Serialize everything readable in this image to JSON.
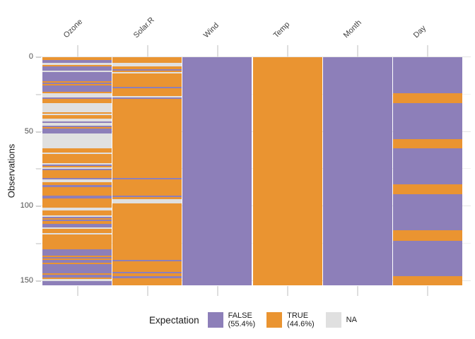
{
  "chart_data": {
    "type": "heatmap",
    "title": "",
    "ylabel": "Observations",
    "x_categories": [
      "Ozone",
      "Solar.R",
      "Wind",
      "Temp",
      "Month",
      "Day"
    ],
    "y_axis_ticks": [
      0,
      50,
      100,
      150
    ],
    "y_axis_minor_ticks": [
      25,
      75,
      125
    ],
    "y_range": [
      0,
      153
    ],
    "n_observations": 153,
    "grid": "minimal",
    "colors": {
      "T": "#ea9431",
      "F": "#8d7fb9",
      "N": "#e0e0e0"
    },
    "value_names": {
      "T": "TRUE",
      "F": "FALSE",
      "N": "NA"
    },
    "legend": {
      "position": "bottom",
      "title": "Expectation",
      "entries": [
        {
          "code": "F",
          "label": "FALSE",
          "percent": "(55.4%)",
          "color": "#8d7fb9"
        },
        {
          "code": "T",
          "label": "TRUE",
          "percent": "(44.6%)",
          "color": "#ea9431"
        },
        {
          "code": "N",
          "label": "NA",
          "percent": "",
          "color": "#e0e0e0"
        }
      ]
    },
    "cells_rle": {
      "Ozone": [
        [
          "T",
          2
        ],
        [
          "F",
          2
        ],
        [
          "N",
          1
        ],
        [
          "T",
          1
        ],
        [
          "F",
          3
        ],
        [
          "N",
          1
        ],
        [
          "F",
          6
        ],
        [
          "T",
          1
        ],
        [
          "F",
          1
        ],
        [
          "T",
          1
        ],
        [
          "F",
          4
        ],
        [
          "T",
          1
        ],
        [
          "N",
          3
        ],
        [
          "F",
          1
        ],
        [
          "T",
          3
        ],
        [
          "N",
          6
        ],
        [
          "T",
          1
        ],
        [
          "N",
          1
        ],
        [
          "T",
          2
        ],
        [
          "N",
          2
        ],
        [
          "F",
          1
        ],
        [
          "N",
          2
        ],
        [
          "F",
          1
        ],
        [
          "T",
          1
        ],
        [
          "F",
          3
        ],
        [
          "N",
          10
        ],
        [
          "T",
          3
        ],
        [
          "N",
          1
        ],
        [
          "T",
          6
        ],
        [
          "N",
          1
        ],
        [
          "F",
          1
        ],
        [
          "T",
          1
        ],
        [
          "N",
          1
        ],
        [
          "F",
          1
        ],
        [
          "T",
          5
        ],
        [
          "F",
          1
        ],
        [
          "N",
          2
        ],
        [
          "T",
          2
        ],
        [
          "F",
          1
        ],
        [
          "T",
          6
        ],
        [
          "F",
          2
        ],
        [
          "T",
          6
        ],
        [
          "N",
          2
        ],
        [
          "T",
          3
        ],
        [
          "N",
          1
        ],
        [
          "F",
          1
        ],
        [
          "T",
          1
        ],
        [
          "F",
          1
        ],
        [
          "T",
          2
        ],
        [
          "F",
          2
        ],
        [
          "N",
          1
        ],
        [
          "T",
          3
        ],
        [
          "N",
          1
        ],
        [
          "T",
          10
        ],
        [
          "F",
          4
        ],
        [
          "T",
          1
        ],
        [
          "F",
          1
        ],
        [
          "T",
          1
        ],
        [
          "F",
          2
        ],
        [
          "T",
          1
        ],
        [
          "F",
          6
        ],
        [
          "T",
          1
        ],
        [
          "F",
          2
        ],
        [
          "T",
          1
        ],
        [
          "N",
          1
        ],
        [
          "F",
          3
        ]
      ],
      "Solar.R": [
        [
          "T",
          4
        ],
        [
          "N",
          2
        ],
        [
          "T",
          2
        ],
        [
          "F",
          1
        ],
        [
          "T",
          1
        ],
        [
          "N",
          1
        ],
        [
          "T",
          9
        ],
        [
          "F",
          1
        ],
        [
          "T",
          5
        ],
        [
          "N",
          1
        ],
        [
          "F",
          1
        ],
        [
          "T",
          53
        ],
        [
          "F",
          1
        ],
        [
          "T",
          11
        ],
        [
          "F",
          1
        ],
        [
          "T",
          1
        ],
        [
          "N",
          3
        ],
        [
          "T",
          38
        ],
        [
          "F",
          1
        ],
        [
          "T",
          7
        ],
        [
          "F",
          1
        ],
        [
          "T",
          2
        ],
        [
          "F",
          1
        ],
        [
          "T",
          5
        ]
      ],
      "Wind": [
        [
          "F",
          153
        ]
      ],
      "Temp": [
        [
          "T",
          153
        ]
      ],
      "Month": [
        [
          "F",
          153
        ]
      ],
      "Day": [
        [
          "F",
          24
        ],
        [
          "T",
          7
        ],
        [
          "F",
          24
        ],
        [
          "T",
          6
        ],
        [
          "F",
          24
        ],
        [
          "T",
          7
        ],
        [
          "F",
          24
        ],
        [
          "T",
          7
        ],
        [
          "F",
          24
        ],
        [
          "T",
          6
        ]
      ]
    }
  }
}
